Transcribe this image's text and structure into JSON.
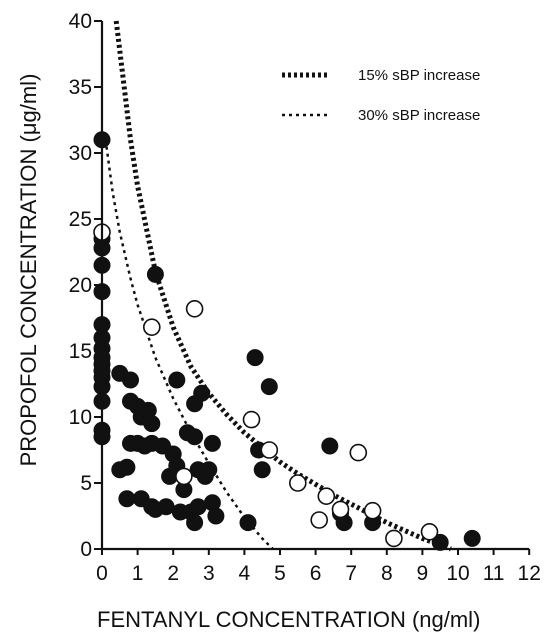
{
  "chart_data": {
    "type": "scatter",
    "title": "",
    "xlabel": "FENTANYL CONCENTRATION (ng/ml)",
    "ylabel": "PROPOFOL CONCENTRATION (μg/ml)",
    "xlim": [
      0,
      12
    ],
    "ylim": [
      0,
      40
    ],
    "xticks": [
      0,
      1,
      2,
      3,
      4,
      5,
      6,
      7,
      8,
      9,
      10,
      11,
      12
    ],
    "yticks": [
      0,
      5,
      10,
      15,
      20,
      25,
      30,
      35,
      40
    ],
    "grid": false,
    "legend_position": "top-right",
    "curves": [
      {
        "name": "15% sBP increase",
        "style": "thick-dotted",
        "color": "#111111",
        "points": [
          [
            0.4,
            40
          ],
          [
            0.6,
            35.5
          ],
          [
            0.8,
            31
          ],
          [
            1,
            27.5
          ],
          [
            1.5,
            21
          ],
          [
            2,
            16.8
          ],
          [
            2.5,
            13.8
          ],
          [
            3,
            11.8
          ],
          [
            3.5,
            10.2
          ],
          [
            4,
            8.8
          ],
          [
            4.5,
            7.7
          ],
          [
            5,
            6.6
          ],
          [
            5.5,
            5.7
          ],
          [
            6,
            4.9
          ],
          [
            6.5,
            4.1
          ],
          [
            7,
            3.4
          ],
          [
            7.5,
            2.7
          ],
          [
            8,
            2
          ],
          [
            8.5,
            1.4
          ],
          [
            9,
            0.8
          ],
          [
            9.5,
            0.3
          ],
          [
            9.8,
            0
          ]
        ]
      },
      {
        "name": "30% sBP increase",
        "style": "thin-dotted",
        "color": "#111111",
        "points": [
          [
            0.1,
            31
          ],
          [
            0.3,
            27
          ],
          [
            0.5,
            24
          ],
          [
            0.8,
            20.5
          ],
          [
            1,
            18.5
          ],
          [
            1.5,
            14.5
          ],
          [
            2,
            11.4
          ],
          [
            2.5,
            8.8
          ],
          [
            3,
            6.5
          ],
          [
            3.5,
            4.3
          ],
          [
            4,
            2.4
          ],
          [
            4.5,
            0.8
          ],
          [
            4.8,
            0
          ]
        ]
      }
    ],
    "series": [
      {
        "marker": "filled-circle",
        "points": [
          [
            0,
            31
          ],
          [
            0,
            23.5
          ],
          [
            0,
            22.8
          ],
          [
            0,
            21.5
          ],
          [
            0,
            19.5
          ],
          [
            0,
            17
          ],
          [
            0,
            16
          ],
          [
            0,
            15.2
          ],
          [
            0,
            14.5
          ],
          [
            0,
            14
          ],
          [
            0,
            13.5
          ],
          [
            0,
            13
          ],
          [
            0,
            12.3
          ],
          [
            0,
            11.2
          ],
          [
            0,
            9
          ],
          [
            0,
            8.5
          ],
          [
            0.5,
            13.3
          ],
          [
            0.8,
            12.8
          ],
          [
            0.8,
            11.2
          ],
          [
            1,
            10.8
          ],
          [
            1.1,
            10
          ],
          [
            1.3,
            10.5
          ],
          [
            1.4,
            9.5
          ],
          [
            1.5,
            20.8
          ],
          [
            0.5,
            6
          ],
          [
            0.7,
            6.2
          ],
          [
            0.8,
            8
          ],
          [
            1,
            8
          ],
          [
            1.2,
            7.8
          ],
          [
            1.4,
            8
          ],
          [
            1.7,
            7.8
          ],
          [
            2,
            7.2
          ],
          [
            0.7,
            3.8
          ],
          [
            1.1,
            3.8
          ],
          [
            1.4,
            3.2
          ],
          [
            1.5,
            3
          ],
          [
            1.8,
            3.2
          ],
          [
            1.9,
            5.5
          ],
          [
            2.1,
            5.8
          ],
          [
            2.1,
            6.3
          ],
          [
            2.1,
            12.8
          ],
          [
            2.3,
            4.5
          ],
          [
            2.2,
            2.8
          ],
          [
            2.5,
            2.8
          ],
          [
            2.4,
            8.8
          ],
          [
            2.6,
            8.5
          ],
          [
            2.6,
            11
          ],
          [
            2.7,
            3.2
          ],
          [
            2.6,
            2
          ],
          [
            2.7,
            6
          ],
          [
            2.8,
            11.8
          ],
          [
            2.9,
            5.5
          ],
          [
            3,
            6
          ],
          [
            3.1,
            8
          ],
          [
            3.1,
            3.5
          ],
          [
            3.2,
            2.5
          ],
          [
            4.3,
            14.5
          ],
          [
            4.4,
            7.5
          ],
          [
            4.5,
            6
          ],
          [
            4.7,
            12.3
          ],
          [
            4.1,
            2
          ],
          [
            6.4,
            7.8
          ],
          [
            6.7,
            2.7
          ],
          [
            6.8,
            2
          ],
          [
            7.6,
            2
          ],
          [
            9.5,
            0.5
          ],
          [
            10.4,
            0.8
          ]
        ]
      },
      {
        "marker": "open-circle",
        "points": [
          [
            0,
            24
          ],
          [
            1.4,
            16.8
          ],
          [
            2.6,
            18.2
          ],
          [
            2.3,
            5.5
          ],
          [
            4.2,
            9.8
          ],
          [
            4.7,
            7.5
          ],
          [
            5.5,
            5
          ],
          [
            6.1,
            2.2
          ],
          [
            6.3,
            4
          ],
          [
            6.7,
            3
          ],
          [
            7.2,
            7.3
          ],
          [
            7.6,
            2.9
          ],
          [
            8.2,
            0.8
          ],
          [
            9.2,
            1.3
          ]
        ]
      }
    ]
  }
}
